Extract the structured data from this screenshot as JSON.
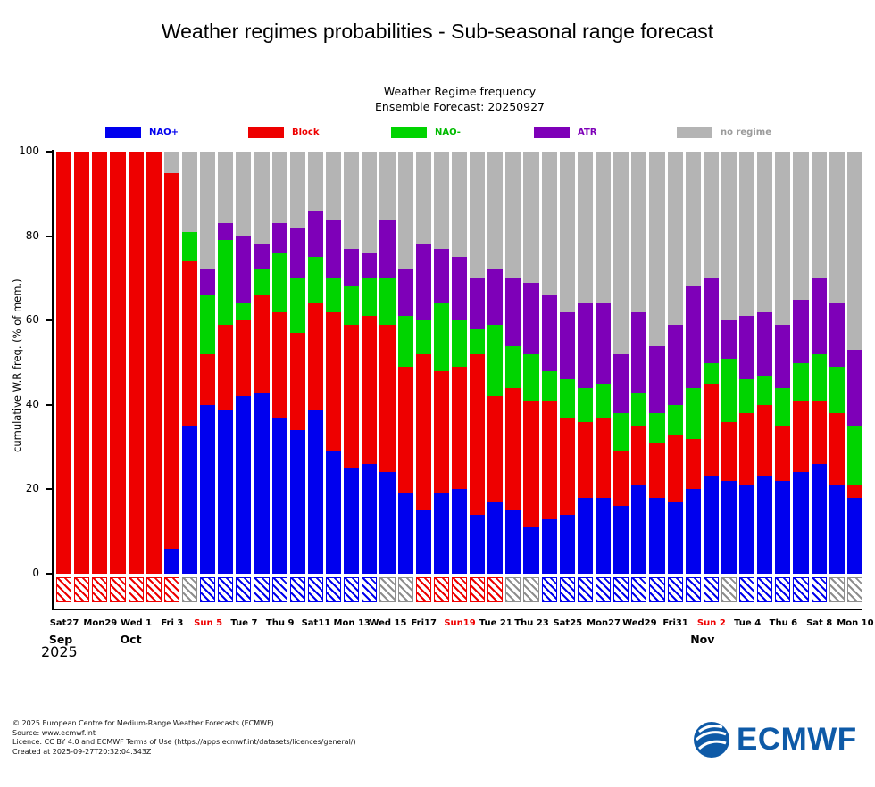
{
  "title": "Weather regimes probabilities - Sub-seasonal range forecast",
  "chart_data": {
    "type": "bar",
    "stacked": true,
    "title": "Weather Regime frequency",
    "subtitle": "Ensemble Forecast: 20250927",
    "ylabel": "cumulative W.R freq. (% of mem.)",
    "ylim": [
      0,
      100
    ],
    "yticks": [
      0,
      20,
      40,
      60,
      80,
      100
    ],
    "grid": false,
    "legend_position": "top",
    "legend": [
      {
        "label": "NAO+",
        "color": "#0000ee",
        "text_color": "#0000ee"
      },
      {
        "label": "Block",
        "color": "#ee0000",
        "text_color": "#ee0000"
      },
      {
        "label": "NAO-",
        "color": "#00d400",
        "text_color": "#00bb00"
      },
      {
        "label": "ATR",
        "color": "#7e00b8",
        "text_color": "#7e00b8"
      },
      {
        "label": "no regime",
        "color": "#b4b4b4",
        "text_color": "#9b9b9b"
      }
    ],
    "dominant_colors": {
      "block": "#ee0000",
      "nao_plus": "#0000ee",
      "none": "#8e8e8e"
    },
    "days": [
      {
        "date": "Sat 27 Sep",
        "values": [
          0,
          100,
          0,
          0,
          0
        ],
        "dominant": "block"
      },
      {
        "date": "Sun 28 Sep",
        "values": [
          0,
          100,
          0,
          0,
          0
        ],
        "dominant": "block"
      },
      {
        "date": "Mon 29 Sep",
        "values": [
          0,
          100,
          0,
          0,
          0
        ],
        "dominant": "block"
      },
      {
        "date": "Tue 30 Sep",
        "values": [
          0,
          100,
          0,
          0,
          0
        ],
        "dominant": "block"
      },
      {
        "date": "Wed 1 Oct",
        "values": [
          0,
          100,
          0,
          0,
          0
        ],
        "dominant": "block"
      },
      {
        "date": "Thu 2 Oct",
        "values": [
          0,
          100,
          0,
          0,
          0
        ],
        "dominant": "block"
      },
      {
        "date": "Fri 3 Oct",
        "values": [
          6,
          89,
          0,
          0,
          5
        ],
        "dominant": "block"
      },
      {
        "date": "Sat 4 Oct",
        "values": [
          35,
          39,
          7,
          0,
          19
        ],
        "dominant": "none"
      },
      {
        "date": "Sun 5 Oct",
        "values": [
          40,
          12,
          14,
          6,
          28
        ],
        "dominant": "nao_plus"
      },
      {
        "date": "Mon 6 Oct",
        "values": [
          39,
          20,
          20,
          4,
          17
        ],
        "dominant": "nao_plus"
      },
      {
        "date": "Tue 7 Oct",
        "values": [
          42,
          18,
          4,
          16,
          20
        ],
        "dominant": "nao_plus"
      },
      {
        "date": "Wed 8 Oct",
        "values": [
          43,
          23,
          6,
          6,
          22
        ],
        "dominant": "nao_plus"
      },
      {
        "date": "Thu 9 Oct",
        "values": [
          37,
          25,
          14,
          7,
          17
        ],
        "dominant": "nao_plus"
      },
      {
        "date": "Fri 10 Oct",
        "values": [
          34,
          23,
          13,
          12,
          18
        ],
        "dominant": "nao_plus"
      },
      {
        "date": "Sat 11 Oct",
        "values": [
          39,
          25,
          11,
          11,
          14
        ],
        "dominant": "nao_plus"
      },
      {
        "date": "Sun 12 Oct",
        "values": [
          29,
          33,
          8,
          14,
          16
        ],
        "dominant": "nao_plus"
      },
      {
        "date": "Mon 13 Oct",
        "values": [
          25,
          34,
          9,
          9,
          23
        ],
        "dominant": "nao_plus"
      },
      {
        "date": "Tue 14 Oct",
        "values": [
          26,
          35,
          9,
          6,
          24
        ],
        "dominant": "nao_plus"
      },
      {
        "date": "Wed 15 Oct",
        "values": [
          24,
          35,
          11,
          14,
          16
        ],
        "dominant": "none"
      },
      {
        "date": "Thu 16 Oct",
        "values": [
          19,
          30,
          12,
          11,
          28
        ],
        "dominant": "none"
      },
      {
        "date": "Fri 17 Oct",
        "values": [
          15,
          37,
          8,
          18,
          22
        ],
        "dominant": "block"
      },
      {
        "date": "Sat 18 Oct",
        "values": [
          19,
          29,
          16,
          13,
          23
        ],
        "dominant": "block"
      },
      {
        "date": "Sun 19 Oct",
        "values": [
          20,
          29,
          11,
          15,
          25
        ],
        "dominant": "block"
      },
      {
        "date": "Mon 20 Oct",
        "values": [
          14,
          38,
          6,
          12,
          30
        ],
        "dominant": "block"
      },
      {
        "date": "Tue 21 Oct",
        "values": [
          17,
          25,
          17,
          13,
          28
        ],
        "dominant": "block"
      },
      {
        "date": "Wed 22 Oct",
        "values": [
          15,
          29,
          10,
          16,
          30
        ],
        "dominant": "none"
      },
      {
        "date": "Thu 23 Oct",
        "values": [
          11,
          30,
          11,
          17,
          31
        ],
        "dominant": "none"
      },
      {
        "date": "Fri 24 Oct",
        "values": [
          13,
          28,
          7,
          18,
          34
        ],
        "dominant": "nao_plus"
      },
      {
        "date": "Sat 25 Oct",
        "values": [
          14,
          23,
          9,
          16,
          38
        ],
        "dominant": "nao_plus"
      },
      {
        "date": "Sun 26 Oct",
        "values": [
          18,
          18,
          8,
          20,
          36
        ],
        "dominant": "nao_plus"
      },
      {
        "date": "Mon 27 Oct",
        "values": [
          18,
          19,
          8,
          19,
          36
        ],
        "dominant": "nao_plus"
      },
      {
        "date": "Tue 28 Oct",
        "values": [
          16,
          13,
          9,
          14,
          48
        ],
        "dominant": "nao_plus"
      },
      {
        "date": "Wed 29 Oct",
        "values": [
          21,
          14,
          8,
          19,
          38
        ],
        "dominant": "nao_plus"
      },
      {
        "date": "Thu 30 Oct",
        "values": [
          18,
          13,
          7,
          16,
          46
        ],
        "dominant": "nao_plus"
      },
      {
        "date": "Fri 31 Oct",
        "values": [
          17,
          16,
          7,
          19,
          41
        ],
        "dominant": "nao_plus"
      },
      {
        "date": "Sat 1 Nov",
        "values": [
          20,
          12,
          12,
          24,
          32
        ],
        "dominant": "nao_plus"
      },
      {
        "date": "Sun 2 Nov",
        "values": [
          23,
          22,
          5,
          20,
          30
        ],
        "dominant": "nao_plus"
      },
      {
        "date": "Mon 3 Nov",
        "values": [
          22,
          14,
          15,
          9,
          40
        ],
        "dominant": "none"
      },
      {
        "date": "Tue 4 Nov",
        "values": [
          21,
          17,
          8,
          15,
          39
        ],
        "dominant": "nao_plus"
      },
      {
        "date": "Wed 5 Nov",
        "values": [
          23,
          17,
          7,
          15,
          38
        ],
        "dominant": "nao_plus"
      },
      {
        "date": "Thu 6 Nov",
        "values": [
          22,
          13,
          9,
          15,
          41
        ],
        "dominant": "nao_plus"
      },
      {
        "date": "Fri 7 Nov",
        "values": [
          24,
          17,
          9,
          15,
          35
        ],
        "dominant": "nao_plus"
      },
      {
        "date": "Sat 8 Nov",
        "values": [
          26,
          15,
          11,
          18,
          30
        ],
        "dominant": "nao_plus"
      },
      {
        "date": "Sun 9 Nov",
        "values": [
          21,
          17,
          11,
          15,
          36
        ],
        "dominant": "none"
      },
      {
        "date": "Mon 10 Nov",
        "values": [
          18,
          3,
          14,
          18,
          47
        ],
        "dominant": "none"
      }
    ],
    "xticks": [
      {
        "index": 0,
        "label": "Sat27",
        "sunday": false
      },
      {
        "index": 2,
        "label": "Mon29",
        "sunday": false
      },
      {
        "index": 4,
        "label": "Wed 1",
        "sunday": false
      },
      {
        "index": 6,
        "label": "Fri 3",
        "sunday": false
      },
      {
        "index": 8,
        "label": "Sun 5",
        "sunday": true
      },
      {
        "index": 10,
        "label": "Tue 7",
        "sunday": false
      },
      {
        "index": 12,
        "label": "Thu 9",
        "sunday": false
      },
      {
        "index": 14,
        "label": "Sat11",
        "sunday": false
      },
      {
        "index": 16,
        "label": "Mon 13",
        "sunday": false
      },
      {
        "index": 18,
        "label": "Wed 15",
        "sunday": false
      },
      {
        "index": 20,
        "label": "Fri17",
        "sunday": false
      },
      {
        "index": 22,
        "label": "Sun19",
        "sunday": true
      },
      {
        "index": 24,
        "label": "Tue 21",
        "sunday": false
      },
      {
        "index": 26,
        "label": "Thu 23",
        "sunday": false
      },
      {
        "index": 28,
        "label": "Sat25",
        "sunday": false
      },
      {
        "index": 30,
        "label": "Mon27",
        "sunday": false
      },
      {
        "index": 32,
        "label": "Wed29",
        "sunday": false
      },
      {
        "index": 34,
        "label": "Fri31",
        "sunday": false
      },
      {
        "index": 36,
        "label": "Sun 2",
        "sunday": true
      },
      {
        "index": 38,
        "label": "Tue 4",
        "sunday": false
      },
      {
        "index": 40,
        "label": "Thu 6",
        "sunday": false
      },
      {
        "index": 42,
        "label": "Sat 8",
        "sunday": false
      },
      {
        "index": 44,
        "label": "Mon 10",
        "sunday": false
      }
    ],
    "months": [
      {
        "label": "Sep",
        "pos": -0.2
      },
      {
        "label": "Oct",
        "pos": 3.7
      },
      {
        "label": "Nov",
        "pos": 35.5
      }
    ],
    "year": "2025"
  },
  "footer": {
    "lines": [
      "© 2025 European Centre for Medium-Range Weather Forecasts (ECMWF)",
      "Source: www.ecmwf.int",
      "Licence: CC BY 4.0 and ECMWF Terms of Use (https://apps.ecmwf.int/datasets/licences/general/)",
      "Created at 2025-09-27T20:32:04.343Z"
    ],
    "logo_text": "ECMWF"
  }
}
